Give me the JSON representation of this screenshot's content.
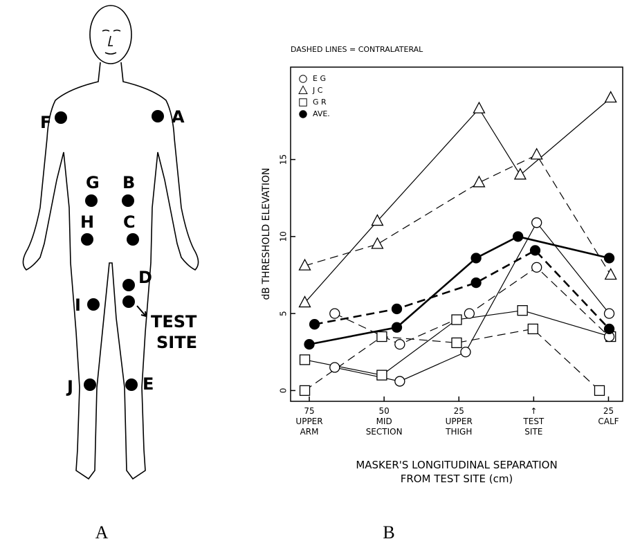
{
  "body_diagram": {
    "site_labels": [
      "F",
      "A",
      "G",
      "B",
      "H",
      "C",
      "D",
      "I",
      "J",
      "E"
    ],
    "test_site_label": "TEST SITE"
  },
  "captions": [
    "A",
    "B"
  ],
  "chart_data": {
    "type": "line",
    "annotation": "DASHED LINES = CONTRALATERAL",
    "y_label": "dB THRESHOLD ELEVATION",
    "x_label": "MASKER'S LONGITUDINAL SEPARATION\nFROM TEST SITE (cm)",
    "xlim": [
      -0.25,
      4.19
    ],
    "xticks": [
      {
        "value": 0,
        "label": "75\nUPPER\nARM"
      },
      {
        "value": 1,
        "label": "50\nMID\nSECTION"
      },
      {
        "value": 2,
        "label": "25\nUPPER\nTHIGH"
      },
      {
        "value": 3,
        "label": "↑\nTEST\nSITE"
      },
      {
        "value": 4,
        "label": "25\nCALF"
      }
    ],
    "ylim": [
      -0.7,
      21
    ],
    "yticks": [
      0,
      5,
      10,
      15
    ],
    "series": [
      {
        "name": "E G",
        "marker": "circle",
        "dashed": false,
        "color": "#000",
        "x": [
          0.34,
          1.21,
          2.09,
          3.04,
          4.01
        ],
        "values": [
          1.5,
          0.6,
          2.5,
          10.9,
          5.0
        ]
      },
      {
        "name": "J C",
        "marker": "triangle",
        "dashed": false,
        "color": "#000",
        "x": [
          -0.06,
          0.91,
          2.27,
          2.82,
          4.03
        ],
        "values": [
          5.7,
          11.0,
          18.3,
          14.0,
          19.0
        ]
      },
      {
        "name": "G R",
        "marker": "square",
        "dashed": false,
        "color": "#000",
        "x": [
          -0.06,
          0.97,
          1.97,
          2.85,
          4.03
        ],
        "values": [
          2.0,
          1.0,
          4.6,
          5.2,
          3.5
        ]
      },
      {
        "name": "AVE.",
        "marker": "filled-circle",
        "dashed": false,
        "color": "#000",
        "x": [
          0,
          1.17,
          2.23,
          2.79,
          4.01
        ],
        "values": [
          3.0,
          4.1,
          8.6,
          10.0,
          8.6
        ]
      },
      {
        "name": "E G",
        "marker": "circle",
        "dashed": true,
        "color": "#000",
        "x": [
          0.34,
          1.21,
          2.14,
          3.04,
          4.01
        ],
        "values": [
          5.0,
          3.0,
          5.0,
          8.0,
          3.5
        ]
      },
      {
        "name": "J C",
        "marker": "triangle",
        "dashed": true,
        "color": "#000",
        "x": [
          -0.06,
          0.91,
          2.27,
          3.04,
          4.03
        ],
        "values": [
          8.1,
          9.5,
          13.5,
          15.3,
          7.5
        ]
      },
      {
        "name": "G R",
        "marker": "square",
        "dashed": true,
        "color": "#000",
        "x": [
          -0.06,
          0.97,
          1.97,
          2.99,
          3.88
        ],
        "values": [
          0,
          3.5,
          3.1,
          4.0,
          0
        ]
      },
      {
        "name": "AVE.",
        "marker": "filled-circle",
        "dashed": true,
        "color": "#000",
        "x": [
          0.07,
          1.17,
          2.23,
          3.02,
          4.01
        ],
        "values": [
          4.3,
          5.3,
          7.0,
          9.1,
          4.0
        ]
      }
    ]
  }
}
